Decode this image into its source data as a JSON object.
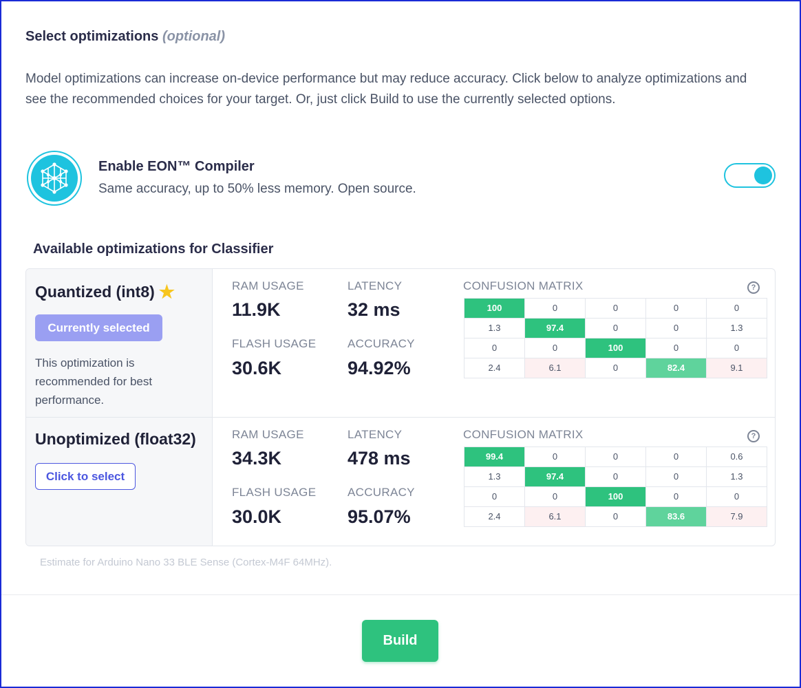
{
  "header": {
    "title": "Select optimizations",
    "title_suffix": "(optional)",
    "description": "Model optimizations can increase on-device performance but may reduce accuracy. Click below to analyze optimizations and see the recommended choices for your target. Or, just click Build to use the currently selected options."
  },
  "eon": {
    "icon": "neural-network-icon",
    "title": "Enable EON™ Compiler",
    "subtitle": "Same accuracy, up to 50% less memory. Open source.",
    "enabled": true,
    "accent": "#1ec3df"
  },
  "available": {
    "title": "Available optimizations for Classifier"
  },
  "labels": {
    "ram": "RAM USAGE",
    "latency": "LATENCY",
    "flash": "FLASH USAGE",
    "accuracy": "ACCURACY",
    "confusion": "CONFUSION MATRIX",
    "help_glyph": "?"
  },
  "optimizations": [
    {
      "name": "Quantized (int8)",
      "recommended_icon": "star-icon",
      "button_label": "Currently selected",
      "note": "This optimization is recommended for best performance.",
      "ram": "11.9K",
      "latency": "32 ms",
      "flash": "30.6K",
      "accuracy": "94.92%",
      "confusion_matrix": [
        [
          "100",
          "0",
          "0",
          "0",
          "0"
        ],
        [
          "1.3",
          "97.4",
          "0",
          "0",
          "1.3"
        ],
        [
          "0",
          "0",
          "100",
          "0",
          "0"
        ],
        [
          "2.4",
          "6.1",
          "0",
          "82.4",
          "9.1"
        ]
      ]
    },
    {
      "name": "Unoptimized (float32)",
      "button_label": "Click to select",
      "ram": "34.3K",
      "latency": "478 ms",
      "flash": "30.0K",
      "accuracy": "95.07%",
      "confusion_matrix": [
        [
          "99.4",
          "0",
          "0",
          "0",
          "0.6"
        ],
        [
          "1.3",
          "97.4",
          "0",
          "0",
          "1.3"
        ],
        [
          "0",
          "0",
          "100",
          "0",
          "0"
        ],
        [
          "2.4",
          "6.1",
          "0",
          "83.6",
          "7.9"
        ]
      ]
    }
  ],
  "estimate": "Estimate for Arduino Nano 33 BLE Sense (Cortex-M4F 64MHz).",
  "footer": {
    "build_label": "Build",
    "build_color": "#2ec27e"
  }
}
